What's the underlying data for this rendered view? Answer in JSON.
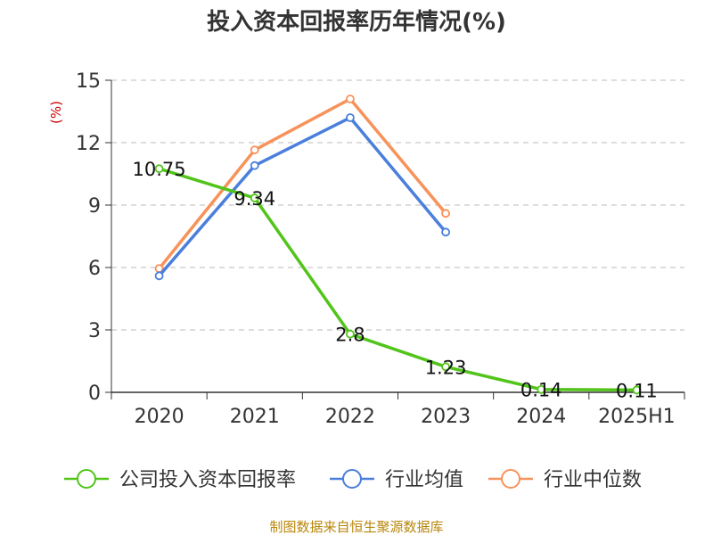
{
  "chart_data": {
    "type": "line",
    "title": "投入资本回报率历年情况(%)",
    "ylabel": "(%)",
    "xlabel": "",
    "categories": [
      "2020",
      "2021",
      "2022",
      "2023",
      "2024",
      "2025H1"
    ],
    "ylim": [
      0,
      15
    ],
    "yticks": [
      0,
      3,
      6,
      9,
      12,
      15
    ],
    "grid": true,
    "legend_position": "bottom",
    "series": [
      {
        "name": "公司投入资本回报率",
        "color": "#52c41a",
        "values": [
          10.75,
          9.34,
          2.8,
          1.23,
          0.14,
          0.11
        ],
        "labels": [
          "10.75",
          "9.34",
          "2.8",
          "1.23",
          "0.14",
          "0.11"
        ]
      },
      {
        "name": "行业均值",
        "color": "#4a7fdc",
        "values": [
          5.6,
          10.9,
          13.2,
          7.7,
          null,
          null
        ]
      },
      {
        "name": "行业中位数",
        "color": "#f7925a",
        "values": [
          5.95,
          11.65,
          14.1,
          8.6,
          null,
          null
        ]
      }
    ]
  },
  "source": "制图数据来自恒生聚源数据库"
}
